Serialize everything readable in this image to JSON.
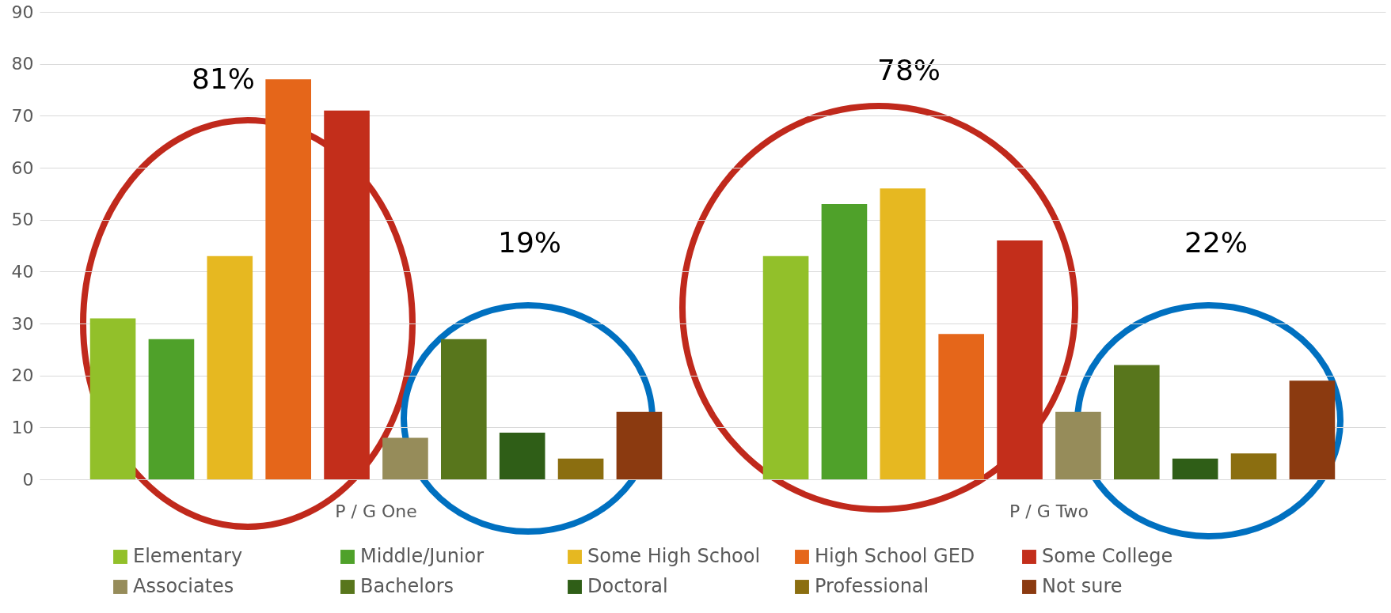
{
  "chart_data": {
    "type": "bar",
    "categories": [
      "P / G One",
      "P / G Two"
    ],
    "series": [
      {
        "name": "Elementary",
        "color": "#92c02a",
        "values": [
          31,
          43
        ]
      },
      {
        "name": "Middle/Junior",
        "color": "#4fa12a",
        "values": [
          27,
          53
        ]
      },
      {
        "name": "Some High School",
        "color": "#e6b821",
        "values": [
          43,
          56
        ]
      },
      {
        "name": "High School GED",
        "color": "#e5661a",
        "values": [
          77,
          28
        ]
      },
      {
        "name": "Some College",
        "color": "#c32e1b",
        "values": [
          71,
          46
        ]
      },
      {
        "name": "Associates",
        "color": "#968c5a",
        "values": [
          8,
          13
        ]
      },
      {
        "name": "Bachelors",
        "color": "#58761c",
        "values": [
          27,
          22
        ]
      },
      {
        "name": "Doctoral",
        "color": "#2f5e17",
        "values": [
          9,
          4
        ]
      },
      {
        "name": "Professional",
        "color": "#8b6e10",
        "values": [
          4,
          5
        ]
      },
      {
        "name": "Not sure",
        "color": "#8b3a10",
        "values": [
          13,
          19
        ]
      }
    ],
    "ylim": [
      0,
      90
    ],
    "yticks": [
      0,
      10,
      20,
      30,
      40,
      50,
      60,
      70,
      80,
      90
    ],
    "grid": "y",
    "legend": "bottom",
    "annotations": [
      "81%",
      "19%",
      "78%",
      "22%"
    ]
  }
}
